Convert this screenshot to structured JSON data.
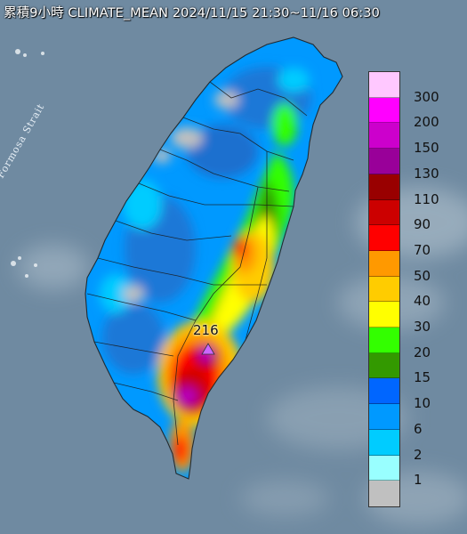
{
  "title": "累積9小時 CLIMATE_MEAN 2024/11/15 21:30~11/16 06:30",
  "water_label": "Formosa Strait",
  "max_marker": {
    "value": "216",
    "icon": "triangle-max-marker-icon"
  },
  "legend": {
    "labels": [
      "300",
      "200",
      "150",
      "130",
      "110",
      "90",
      "70",
      "50",
      "40",
      "30",
      "20",
      "15",
      "10",
      "6",
      "2",
      "1"
    ],
    "colors": [
      "#ffc8ff",
      "#ff00ff",
      "#cc00cc",
      "#990099",
      "#990000",
      "#cc0000",
      "#ff0000",
      "#ff9900",
      "#ffcc00",
      "#ffff00",
      "#33ff00",
      "#339900",
      "#0066ff",
      "#0099ff",
      "#00ccff",
      "#99ffff",
      "#c0c0c0"
    ]
  },
  "colors": {
    "sea": "#6f8aa1",
    "sea_light": "#9fb3c2",
    "land_low": "#1e78d7",
    "land_base": "#0099ff"
  }
}
